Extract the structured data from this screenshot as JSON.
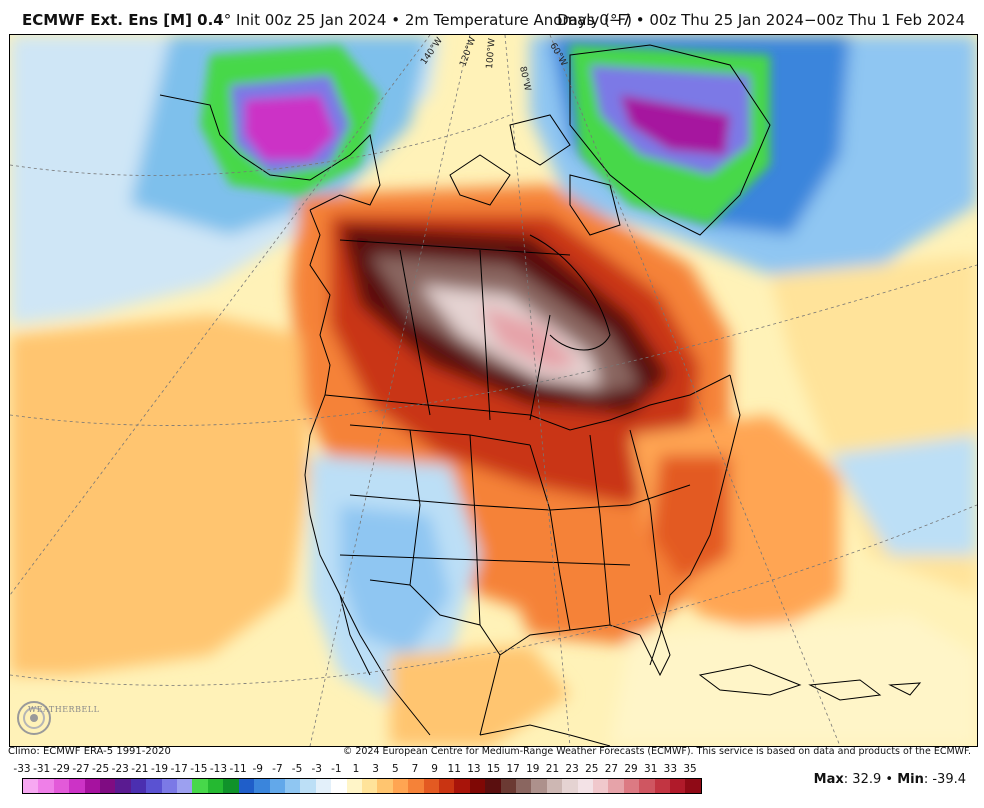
{
  "header": {
    "model": "ECMWF Ext. Ens [M] 0.4",
    "degree": "°",
    "init": "Init 00z 25 Jan 2024",
    "bullet": "•",
    "variable": "2m Temperature Anomaly (°F)",
    "valid": "Days 0−7 • 00z Thu 25 Jan 2024−00z Thu 1 Feb 2024"
  },
  "map": {
    "longitude_labels": [
      "140°W",
      "120°W",
      "100°W",
      "80°W",
      "60°W"
    ],
    "logo_text": "WEATHERBELL"
  },
  "footer": {
    "climo": "Climo: ECMWF ERA-5 1991-2020",
    "copyright": "© 2024 European Centre for Medium-Range Weather Forecasts (ECMWF). This service is based on data and products of the ECMWF."
  },
  "scale": {
    "labels": [
      "-33",
      "-31",
      "-29",
      "-27",
      "-25",
      "-23",
      "-21",
      "-19",
      "-17",
      "-15",
      "-13",
      "-11",
      "-9",
      "-7",
      "-5",
      "-3",
      "-1",
      "1",
      "3",
      "5",
      "7",
      "9",
      "11",
      "13",
      "15",
      "17",
      "19",
      "21",
      "23",
      "25",
      "27",
      "29",
      "31",
      "33",
      "35"
    ],
    "colors": [
      "#f7a8f2",
      "#ef7fe8",
      "#e35ad9",
      "#cc33c6",
      "#a6129f",
      "#7f0c82",
      "#5a1b91",
      "#4b2fb0",
      "#5a52d2",
      "#7b79e6",
      "#9ca0f0",
      "#47d84a",
      "#25b931",
      "#10922a",
      "#1f5ec9",
      "#3a85dc",
      "#62a8ea",
      "#8fc6f2",
      "#bcdff6",
      "#e3f0fa",
      "#ffffff",
      "#fff5c8",
      "#ffe39a",
      "#ffc56f",
      "#ffa552",
      "#f58238",
      "#e35a22",
      "#c93412",
      "#a8140a",
      "#7f0805",
      "#5a0f0f",
      "#6b3a33",
      "#8a6660",
      "#ad918c",
      "#cdb7b3",
      "#e5d3d2",
      "#f3e2e6",
      "#f0c8cc",
      "#e6a3a9",
      "#dc7a83",
      "#cf5661",
      "#c23542",
      "#b01a2a",
      "#8f0a16"
    ]
  },
  "stats": {
    "max_label": "Max",
    "max_value": "32.9",
    "min_label": "Min",
    "min_value": "-39.4"
  }
}
